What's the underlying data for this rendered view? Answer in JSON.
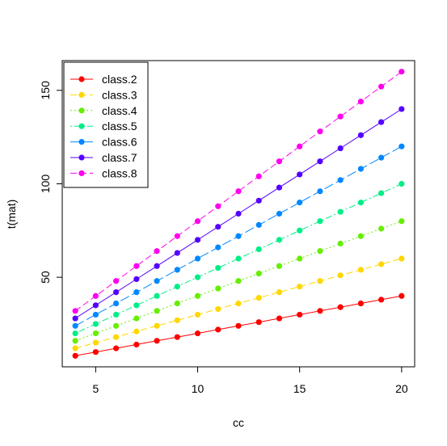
{
  "chart_data": {
    "type": "line",
    "title": "",
    "xlabel": "cc",
    "ylabel": "t(mat)",
    "x": [
      4,
      5,
      6,
      7,
      8,
      9,
      10,
      11,
      12,
      13,
      14,
      15,
      16,
      17,
      18,
      19,
      20
    ],
    "xlim": [
      3.36,
      20.64
    ],
    "ylim": [
      2.08,
      165.92
    ],
    "xticks": [
      5,
      10,
      15,
      20
    ],
    "yticks": [
      50,
      100,
      150
    ],
    "grid": false,
    "legend_position": "top-left",
    "series": [
      {
        "name": "class.2",
        "color": "#ff0000",
        "line_style": "solid",
        "multiplier": 2,
        "values": [
          8,
          10,
          12,
          14,
          16,
          18,
          20,
          22,
          24,
          26,
          28,
          30,
          32,
          34,
          36,
          38,
          40
        ]
      },
      {
        "name": "class.3",
        "color": "#ffd700",
        "line_style": "dashed",
        "multiplier": 3,
        "values": [
          12,
          15,
          18,
          21,
          24,
          27,
          30,
          33,
          36,
          39,
          42,
          45,
          48,
          51,
          54,
          57,
          60
        ]
      },
      {
        "name": "class.4",
        "color": "#66ee00",
        "line_style": "dotted",
        "multiplier": 4,
        "values": [
          16,
          20,
          24,
          28,
          32,
          36,
          40,
          44,
          48,
          52,
          56,
          60,
          64,
          68,
          72,
          76,
          80
        ]
      },
      {
        "name": "class.5",
        "color": "#00ee88",
        "line_style": "dotdash",
        "multiplier": 5,
        "values": [
          20,
          25,
          30,
          35,
          40,
          45,
          50,
          55,
          60,
          65,
          70,
          75,
          80,
          85,
          90,
          95,
          100
        ]
      },
      {
        "name": "class.6",
        "color": "#0088ff",
        "line_style": "longdash",
        "multiplier": 6,
        "values": [
          24,
          30,
          36,
          42,
          48,
          54,
          60,
          66,
          72,
          78,
          84,
          90,
          96,
          102,
          108,
          114,
          120
        ]
      },
      {
        "name": "class.7",
        "color": "#5500ff",
        "line_style": "solid",
        "multiplier": 7,
        "values": [
          28,
          35,
          42,
          49,
          56,
          63,
          70,
          77,
          84,
          91,
          98,
          105,
          112,
          119,
          126,
          133,
          140
        ]
      },
      {
        "name": "class.8",
        "color": "#ff00ee",
        "line_style": "dashed",
        "multiplier": 8,
        "values": [
          32,
          40,
          48,
          56,
          64,
          72,
          80,
          88,
          96,
          104,
          112,
          120,
          128,
          136,
          144,
          152,
          160
        ]
      }
    ]
  }
}
